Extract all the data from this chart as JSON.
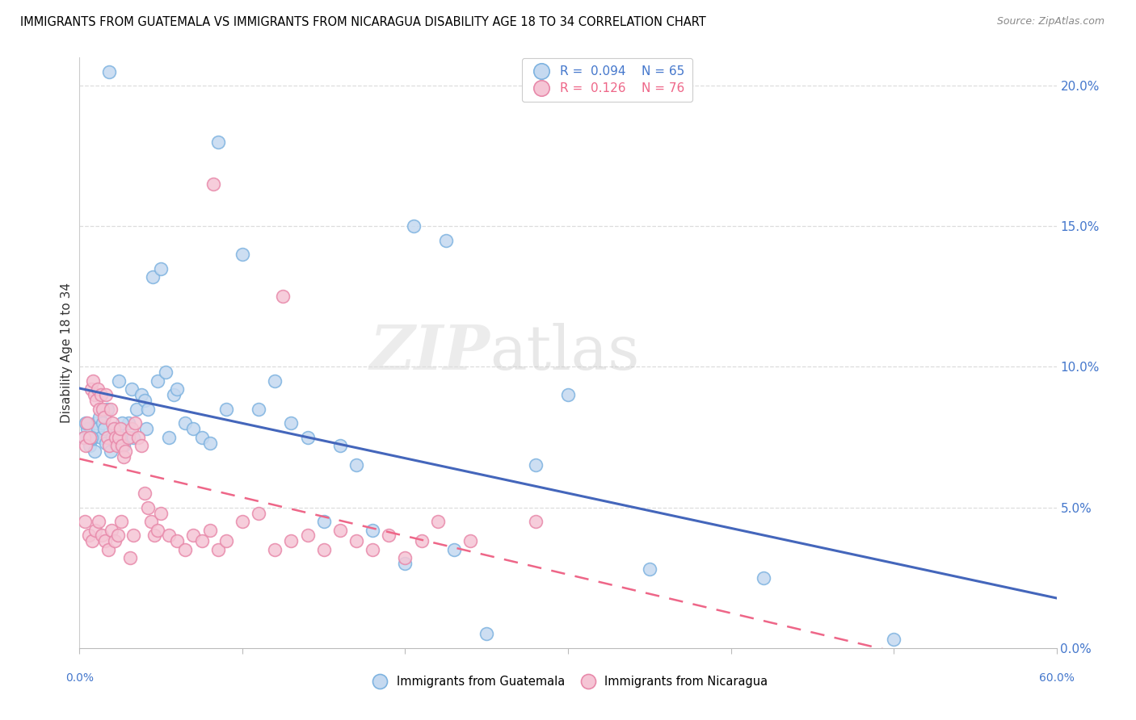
{
  "title": "IMMIGRANTS FROM GUATEMALA VS IMMIGRANTS FROM NICARAGUA DISABILITY AGE 18 TO 34 CORRELATION CHART",
  "source": "Source: ZipAtlas.com",
  "ylabel": "Disability Age 18 to 34",
  "legend_blue_label": "Immigrants from Guatemala",
  "legend_pink_label": "Immigrants from Nicaragua",
  "legend_blue_r": "0.094",
  "legend_blue_n": "65",
  "legend_pink_r": "0.126",
  "legend_pink_n": "76",
  "watermark_zip": "ZIP",
  "watermark_atlas": "atlas",
  "blue_face": "#C5D9F0",
  "blue_edge": "#7EB3E0",
  "pink_face": "#F5C5D5",
  "pink_edge": "#E889AA",
  "blue_line": "#4466BB",
  "pink_line": "#EE6688",
  "blue_text": "#4477CC",
  "pink_text": "#EE6688",
  "xlim": [
    0,
    60
  ],
  "ylim": [
    0,
    21
  ],
  "yticks": [
    0,
    5,
    10,
    15,
    20
  ],
  "guatemala_x": [
    1.8,
    8.5,
    20.5,
    22.5,
    50.0,
    42.0,
    35.0,
    25.0,
    0.3,
    0.5,
    0.6,
    0.8,
    0.9,
    1.0,
    1.1,
    1.2,
    1.3,
    1.4,
    1.5,
    1.6,
    1.7,
    1.9,
    2.0,
    2.1,
    2.2,
    2.3,
    2.5,
    2.7,
    3.0,
    3.2,
    3.5,
    3.8,
    4.0,
    4.2,
    4.5,
    4.8,
    5.0,
    5.3,
    5.5,
    5.8,
    6.0,
    6.5,
    7.0,
    7.5,
    8.0,
    9.0,
    10.0,
    11.0,
    12.0,
    13.0,
    14.0,
    15.0,
    16.0,
    17.0,
    18.0,
    20.0,
    23.0,
    28.0,
    30.0,
    0.4,
    0.7,
    2.4,
    2.6,
    3.3,
    4.1
  ],
  "guatemala_y": [
    20.5,
    18.0,
    15.0,
    14.5,
    0.3,
    2.5,
    2.8,
    0.5,
    7.5,
    7.8,
    7.2,
    7.5,
    7.0,
    8.0,
    7.8,
    8.2,
    7.5,
    8.0,
    7.8,
    7.3,
    8.5,
    7.0,
    7.5,
    7.8,
    7.3,
    7.8,
    7.5,
    7.2,
    8.0,
    9.2,
    8.5,
    9.0,
    8.8,
    8.5,
    13.2,
    9.5,
    13.5,
    9.8,
    7.5,
    9.0,
    9.2,
    8.0,
    7.8,
    7.5,
    7.3,
    8.5,
    14.0,
    8.5,
    9.5,
    8.0,
    7.5,
    4.5,
    7.2,
    6.5,
    4.2,
    3.0,
    3.5,
    6.5,
    9.0,
    8.0,
    7.5,
    9.5,
    8.0,
    7.5,
    7.8
  ],
  "nicaragua_x": [
    0.3,
    0.4,
    0.5,
    0.6,
    0.7,
    0.8,
    0.9,
    1.0,
    1.1,
    1.2,
    1.3,
    1.4,
    1.5,
    1.6,
    1.7,
    1.8,
    1.9,
    2.0,
    2.1,
    2.2,
    2.3,
    2.4,
    2.5,
    2.6,
    2.7,
    2.8,
    3.0,
    3.2,
    3.4,
    3.6,
    3.8,
    4.0,
    4.2,
    4.4,
    4.6,
    4.8,
    5.0,
    5.5,
    6.0,
    6.5,
    7.0,
    7.5,
    8.0,
    8.5,
    9.0,
    10.0,
    11.0,
    12.0,
    13.0,
    14.0,
    15.0,
    16.0,
    17.0,
    18.0,
    19.0,
    20.0,
    21.0,
    22.0,
    24.0,
    28.0,
    0.35,
    0.55,
    0.75,
    0.95,
    1.15,
    1.35,
    1.55,
    1.75,
    1.95,
    2.15,
    2.35,
    2.55,
    3.1,
    3.3,
    8.2,
    12.5
  ],
  "nicaragua_y": [
    7.5,
    7.2,
    8.0,
    7.5,
    9.2,
    9.5,
    9.0,
    8.8,
    9.2,
    8.5,
    9.0,
    8.5,
    8.2,
    9.0,
    7.5,
    7.2,
    8.5,
    8.0,
    7.8,
    7.5,
    7.2,
    7.5,
    7.8,
    7.2,
    6.8,
    7.0,
    7.5,
    7.8,
    8.0,
    7.5,
    7.2,
    5.5,
    5.0,
    4.5,
    4.0,
    4.2,
    4.8,
    4.0,
    3.8,
    3.5,
    4.0,
    3.8,
    4.2,
    3.5,
    3.8,
    4.5,
    4.8,
    3.5,
    3.8,
    4.0,
    3.5,
    4.2,
    3.8,
    3.5,
    4.0,
    3.2,
    3.8,
    4.5,
    3.8,
    4.5,
    4.5,
    4.0,
    3.8,
    4.2,
    4.5,
    4.0,
    3.8,
    3.5,
    4.2,
    3.8,
    4.0,
    4.5,
    3.2,
    4.0,
    16.5,
    12.5
  ]
}
